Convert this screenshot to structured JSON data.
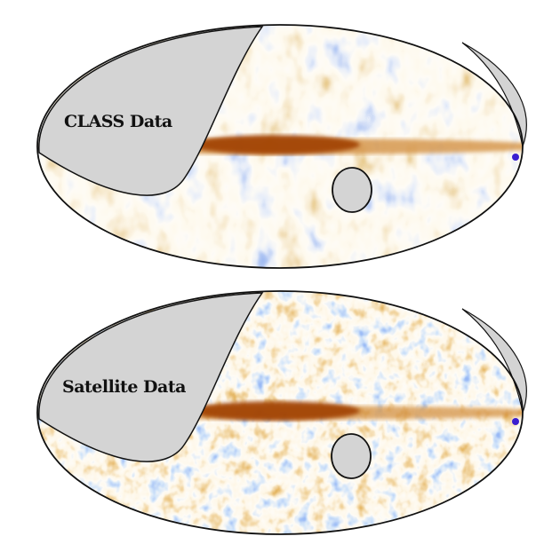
{
  "panels": [
    {
      "label": "CLASS Data"
    },
    {
      "label": "Satellite Data"
    }
  ],
  "colors": {
    "negative": "#4a78d8",
    "zero": "#fbf6e8",
    "positive": "#c8801c",
    "strong_positive": "#a84400",
    "mask": "#d4d4d4",
    "outline": "#111111"
  },
  "projection": "mollweide"
}
